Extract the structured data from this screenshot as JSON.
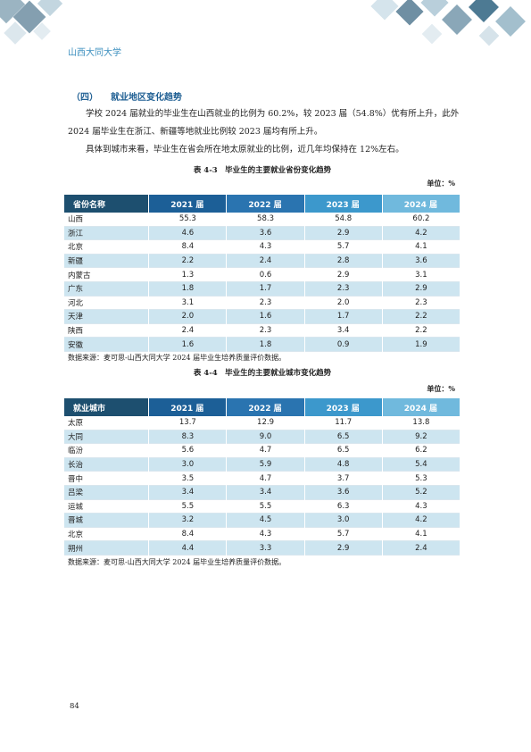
{
  "header": {
    "title": "山西大同大学"
  },
  "section": {
    "number": "（四）",
    "title": "就业地区变化趋势",
    "paragraphs": [
      "学校 2024 届就业的毕业生在山西就业的比例为 60.2%，较 2023 届（54.8%）优有所上升，此外 2024 届毕业生在浙江、新疆等地就业比例较 2023 届均有所上升。",
      "具体到城市来看，毕业生在省会所在地太原就业的比例，近几年均保持在 12%左右。"
    ]
  },
  "tables": [
    {
      "caption": "表 4-3　毕业生的主要就业省份变化趋势",
      "unit": "单位：%",
      "columns": [
        "省份名称",
        "2021 届",
        "2022 届",
        "2023 届",
        "2024 届"
      ],
      "rows": [
        [
          "山西",
          "55.3",
          "58.3",
          "54.8",
          "60.2"
        ],
        [
          "浙江",
          "4.6",
          "3.6",
          "2.9",
          "4.2"
        ],
        [
          "北京",
          "8.4",
          "4.3",
          "5.7",
          "4.1"
        ],
        [
          "新疆",
          "2.2",
          "2.4",
          "2.8",
          "3.6"
        ],
        [
          "内蒙古",
          "1.3",
          "0.6",
          "2.9",
          "3.1"
        ],
        [
          "广东",
          "1.8",
          "1.7",
          "2.3",
          "2.9"
        ],
        [
          "河北",
          "3.1",
          "2.3",
          "2.0",
          "2.3"
        ],
        [
          "天津",
          "2.0",
          "1.6",
          "1.7",
          "2.2"
        ],
        [
          "陕西",
          "2.4",
          "2.3",
          "3.4",
          "2.2"
        ],
        [
          "安徽",
          "1.6",
          "1.8",
          "0.9",
          "1.9"
        ]
      ],
      "source": "数据来源：麦可思-山西大同大学 2024 届毕业生培养质量评价数据。"
    },
    {
      "caption": "表 4-4　毕业生的主要就业城市变化趋势",
      "unit": "单位：%",
      "columns": [
        "就业城市",
        "2021 届",
        "2022 届",
        "2023 届",
        "2024 届"
      ],
      "rows": [
        [
          "太原",
          "13.7",
          "12.9",
          "11.7",
          "13.8"
        ],
        [
          "大同",
          "8.3",
          "9.0",
          "6.5",
          "9.2"
        ],
        [
          "临汾",
          "5.6",
          "4.7",
          "6.5",
          "6.2"
        ],
        [
          "长治",
          "3.0",
          "5.9",
          "4.8",
          "5.4"
        ],
        [
          "晋中",
          "3.5",
          "4.7",
          "3.7",
          "5.3"
        ],
        [
          "吕梁",
          "3.4",
          "3.4",
          "3.6",
          "5.2"
        ],
        [
          "运城",
          "5.5",
          "5.5",
          "6.3",
          "4.3"
        ],
        [
          "晋城",
          "3.2",
          "4.5",
          "3.0",
          "4.2"
        ],
        [
          "北京",
          "8.4",
          "4.3",
          "5.7",
          "4.1"
        ],
        [
          "朔州",
          "4.4",
          "3.3",
          "2.9",
          "2.4"
        ]
      ],
      "source": "数据来源：麦可思-山西大同大学 2024 届毕业生培养质量评价数据。"
    }
  ],
  "footer": {
    "page_number": "84"
  }
}
